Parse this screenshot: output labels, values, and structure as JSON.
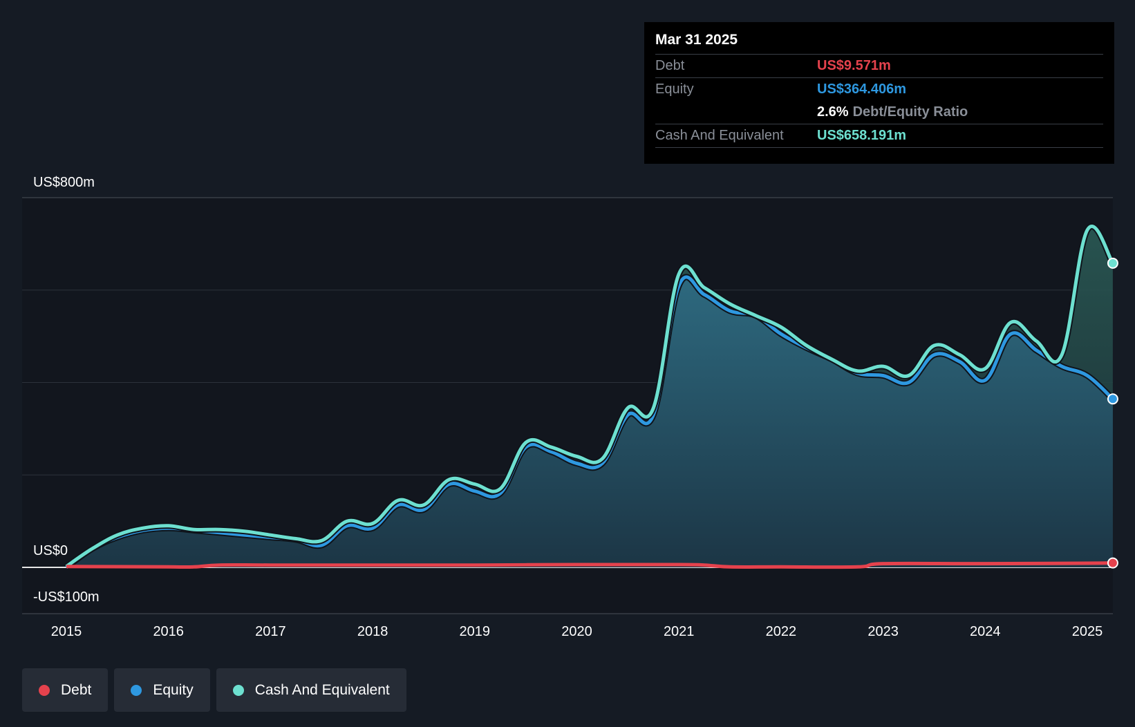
{
  "chart_data": {
    "type": "area",
    "y_labels": {
      "top": "US$800m",
      "zero": "US$0",
      "bottom": "-US$100m"
    },
    "ylim": [
      -100,
      800
    ],
    "x_ticks": [
      "2015",
      "2016",
      "2017",
      "2018",
      "2019",
      "2020",
      "2021",
      "2022",
      "2023",
      "2024",
      "2025"
    ],
    "xlim": [
      2014.57,
      2025.25
    ],
    "series": [
      {
        "name": "Debt",
        "color": "#e5424d",
        "x": [
          2015.0,
          2016.0,
          2016.25,
          2016.5,
          2017.0,
          2018.0,
          2019.0,
          2020.0,
          2021.0,
          2021.25,
          2021.5,
          2022.0,
          2022.75,
          2023.0,
          2024.0,
          2025.0,
          2025.25
        ],
        "values": [
          2,
          1,
          1,
          5,
          5,
          5,
          5,
          6,
          6,
          5,
          1,
          1,
          1,
          8,
          8,
          9,
          9.571
        ]
      },
      {
        "name": "Equity",
        "color": "#2e98e0",
        "x": [
          2015.0,
          2015.25,
          2015.5,
          2015.75,
          2016.0,
          2016.25,
          2016.5,
          2016.75,
          2017.0,
          2017.25,
          2017.5,
          2017.75,
          2018.0,
          2018.25,
          2018.5,
          2018.75,
          2019.0,
          2019.25,
          2019.5,
          2019.75,
          2020.0,
          2020.25,
          2020.5,
          2020.75,
          2021.0,
          2021.25,
          2021.5,
          2021.75,
          2022.0,
          2022.25,
          2022.5,
          2022.75,
          2023.0,
          2023.25,
          2023.5,
          2023.75,
          2024.0,
          2024.25,
          2024.5,
          2024.75,
          2025.0,
          2025.25
        ],
        "values": [
          0,
          40,
          65,
          80,
          85,
          80,
          75,
          70,
          65,
          60,
          48,
          90,
          85,
          135,
          125,
          180,
          165,
          160,
          260,
          250,
          225,
          225,
          330,
          330,
          610,
          590,
          555,
          545,
          505,
          475,
          450,
          420,
          415,
          400,
          460,
          445,
          405,
          505,
          470,
          435,
          415,
          364.406
        ]
      },
      {
        "name": "Cash And Equivalent",
        "color": "#6de0d0",
        "x": [
          2015.0,
          2015.25,
          2015.5,
          2015.75,
          2016.0,
          2016.25,
          2016.5,
          2016.75,
          2017.0,
          2017.25,
          2017.5,
          2017.75,
          2018.0,
          2018.25,
          2018.5,
          2018.75,
          2019.0,
          2019.25,
          2019.5,
          2019.75,
          2020.0,
          2020.25,
          2020.5,
          2020.75,
          2021.0,
          2021.25,
          2021.5,
          2021.75,
          2022.0,
          2022.25,
          2022.5,
          2022.75,
          2023.0,
          2023.25,
          2023.5,
          2023.75,
          2024.0,
          2024.25,
          2024.5,
          2024.75,
          2025.0,
          2025.25
        ],
        "values": [
          2,
          40,
          70,
          85,
          90,
          82,
          82,
          78,
          70,
          62,
          58,
          100,
          95,
          145,
          135,
          190,
          180,
          170,
          270,
          260,
          240,
          235,
          345,
          345,
          635,
          605,
          570,
          545,
          520,
          480,
          450,
          425,
          435,
          415,
          480,
          460,
          430,
          530,
          490,
          460,
          730,
          658.191
        ]
      }
    ]
  },
  "tooltip": {
    "date": "Mar 31 2025",
    "debt_label": "Debt",
    "debt_value": "US$9.571m",
    "equity_label": "Equity",
    "equity_value": "US$364.406m",
    "ratio_value": "2.6%",
    "ratio_label": "Debt/Equity Ratio",
    "cash_label": "Cash And Equivalent",
    "cash_value": "US$658.191m"
  },
  "legend": [
    {
      "label": "Debt",
      "color": "#e5424d"
    },
    {
      "label": "Equity",
      "color": "#2e98e0"
    },
    {
      "label": "Cash And Equivalent",
      "color": "#6de0d0"
    }
  ]
}
